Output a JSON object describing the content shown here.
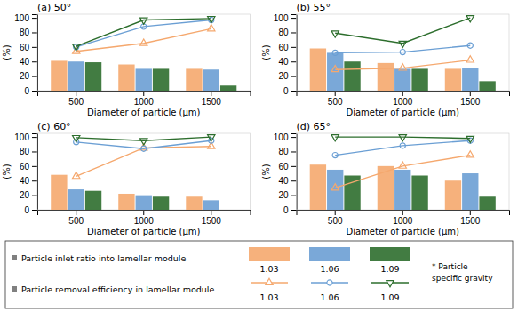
{
  "chart_data": [
    {
      "type": "bar",
      "title": "(a) 50°",
      "x_label": "Diameter of particle (μm)",
      "y_label": "(%)",
      "categories": [
        500,
        1000,
        1500
      ],
      "ylim": [
        0,
        105
      ],
      "yticks": [
        0,
        20,
        40,
        60,
        80,
        100
      ],
      "annotations": [
        "Particle inlet ratio into lamellar module",
        "Particle removal efficiency in lamellar module",
        "* Particle",
        "specific gravity"
      ],
      "series": [
        {
          "name": "1.03",
          "type": "bar",
          "color": "#f5a86e",
          "values": [
            41,
            36,
            30
          ]
        },
        {
          "name": "1.06",
          "type": "bar",
          "color": "#6b9fd4",
          "values": [
            40,
            30,
            29
          ]
        },
        {
          "name": "1.09",
          "type": "bar",
          "color": "#2d6e2d",
          "values": [
            39,
            30,
            7
          ]
        },
        {
          "name": "1.03",
          "type": "line",
          "marker": "triangle-up",
          "color": "#f5a86e",
          "values": [
            54,
            65,
            85
          ]
        },
        {
          "name": "1.06",
          "type": "line",
          "marker": "circle",
          "color": "#6b9fd4",
          "values": [
            60,
            88,
            97
          ]
        },
        {
          "name": "1.09",
          "type": "line",
          "marker": "triangle-down",
          "color": "#2d6e2d",
          "values": [
            61,
            97,
            99
          ]
        }
      ]
    },
    {
      "type": "bar",
      "title": "(b) 55°",
      "x_label": "Diameter of particle (μm)",
      "y_label": "(%)",
      "categories": [
        500,
        1000,
        1500
      ],
      "ylim": [
        0,
        105
      ],
      "yticks": [
        0,
        20,
        40,
        60,
        80,
        100
      ],
      "series": [
        {
          "name": "1.03",
          "type": "bar",
          "color": "#f5a86e",
          "values": [
            58,
            38,
            30
          ]
        },
        {
          "name": "1.06",
          "type": "bar",
          "color": "#6b9fd4",
          "values": [
            52,
            30,
            31
          ]
        },
        {
          "name": "1.09",
          "type": "bar",
          "color": "#2d6e2d",
          "values": [
            40,
            30,
            13
          ]
        },
        {
          "name": "1.03",
          "type": "line",
          "marker": "triangle-up",
          "color": "#f5a86e",
          "values": [
            29,
            31,
            42
          ]
        },
        {
          "name": "1.06",
          "type": "line",
          "marker": "circle",
          "color": "#6b9fd4",
          "values": [
            52,
            53,
            62
          ]
        },
        {
          "name": "1.09",
          "type": "line",
          "marker": "triangle-down",
          "color": "#2d6e2d",
          "values": [
            79,
            65,
            100
          ]
        }
      ]
    },
    {
      "type": "bar",
      "title": "(c) 60°",
      "x_label": "Diameter of particle (μm)",
      "y_label": "(%)",
      "categories": [
        500,
        1000,
        1500
      ],
      "ylim": [
        0,
        105
      ],
      "yticks": [
        0,
        20,
        40,
        60,
        80,
        100
      ],
      "series": [
        {
          "name": "1.03",
          "type": "bar",
          "color": "#f5a86e",
          "values": [
            48,
            22,
            18
          ]
        },
        {
          "name": "1.06",
          "type": "bar",
          "color": "#6b9fd4",
          "values": [
            28,
            20,
            13
          ]
        },
        {
          "name": "1.09",
          "type": "bar",
          "color": "#2d6e2d",
          "values": [
            26,
            18,
            0
          ]
        },
        {
          "name": "1.03",
          "type": "line",
          "marker": "triangle-up",
          "color": "#f5a86e",
          "values": [
            46,
            85,
            87
          ]
        },
        {
          "name": "1.06",
          "type": "line",
          "marker": "circle",
          "color": "#6b9fd4",
          "values": [
            93,
            84,
            95
          ]
        },
        {
          "name": "1.09",
          "type": "line",
          "marker": "triangle-down",
          "color": "#2d6e2d",
          "values": [
            99,
            95,
            100
          ]
        }
      ]
    },
    {
      "type": "bar",
      "title": "(d) 65°",
      "x_label": "Diameter of particle (μm)",
      "y_label": "(%)",
      "categories": [
        500,
        1000,
        1500
      ],
      "ylim": [
        0,
        105
      ],
      "yticks": [
        0,
        20,
        40,
        60,
        80,
        100
      ],
      "series": [
        {
          "name": "1.03",
          "type": "bar",
          "color": "#f5a86e",
          "values": [
            62,
            60,
            40
          ]
        },
        {
          "name": "1.06",
          "type": "bar",
          "color": "#6b9fd4",
          "values": [
            55,
            55,
            50
          ]
        },
        {
          "name": "1.09",
          "type": "bar",
          "color": "#2d6e2d",
          "values": [
            47,
            47,
            18
          ]
        },
        {
          "name": "1.03",
          "type": "line",
          "marker": "triangle-up",
          "color": "#f5a86e",
          "values": [
            30,
            60,
            75
          ]
        },
        {
          "name": "1.06",
          "type": "line",
          "marker": "circle",
          "color": "#6b9fd4",
          "values": [
            75,
            88,
            95
          ]
        },
        {
          "name": "1.09",
          "type": "line",
          "marker": "triangle-down",
          "color": "#2d6e2d",
          "values": [
            100,
            100,
            98
          ]
        }
      ]
    }
  ]
}
